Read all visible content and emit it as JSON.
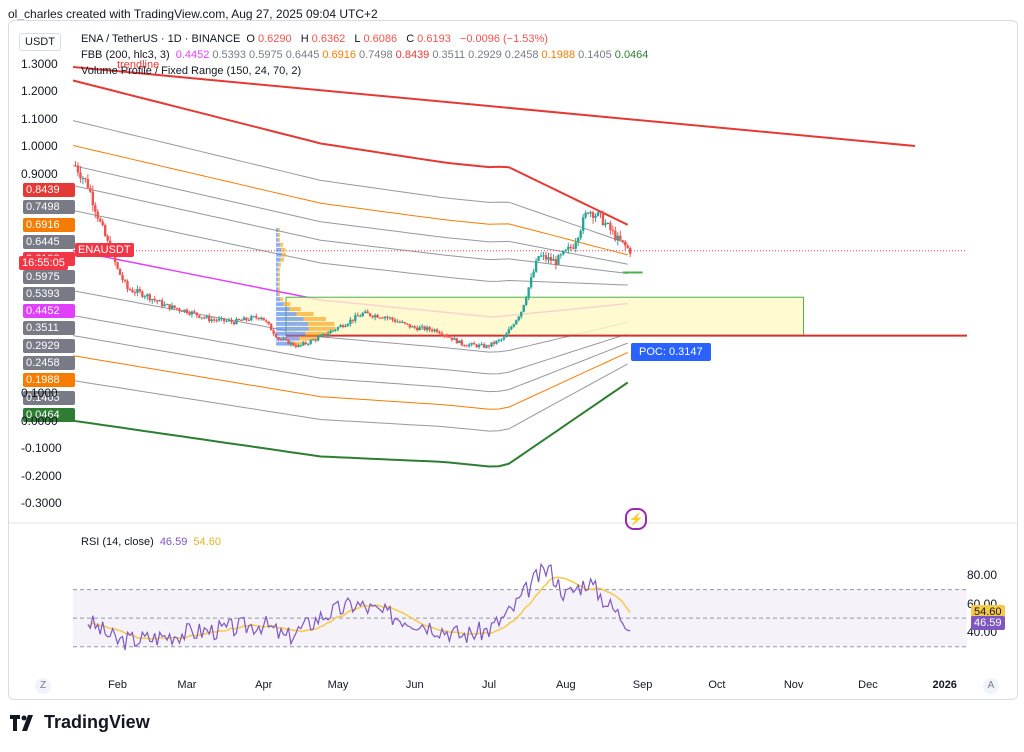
{
  "caption": "ol_charles created with TradingView.com, Aug 27, 2025 09:04 UTC+2",
  "currency": "USDT",
  "legend": {
    "symbol": "ENA / TetherUS · 1D · BINANCE",
    "o_label": "O",
    "o": "0.6290",
    "h_label": "H",
    "h": "0.6362",
    "l_label": "L",
    "l": "0.6086",
    "c_label": "C",
    "c": "0.6193",
    "change": "−0.0096 (−1.53%)",
    "fbb_name": "FBB (200, hlc3, 3)",
    "fbb_values": [
      {
        "v": "0.4452",
        "color": "#e040fb"
      },
      {
        "v": "0.5393",
        "color": "#787b86"
      },
      {
        "v": "0.5975",
        "color": "#787b86"
      },
      {
        "v": "0.6445",
        "color": "#787b86"
      },
      {
        "v": "0.6916",
        "color": "#f57c00"
      },
      {
        "v": "0.7498",
        "color": "#787b86"
      },
      {
        "v": "0.8439",
        "color": "#e53935"
      },
      {
        "v": "0.3511",
        "color": "#787b86"
      },
      {
        "v": "0.2929",
        "color": "#787b86"
      },
      {
        "v": "0.2458",
        "color": "#787b86"
      },
      {
        "v": "0.1988",
        "color": "#f57c00"
      },
      {
        "v": "0.1405",
        "color": "#787b86"
      },
      {
        "v": "0.0464",
        "color": "#2e7d32"
      }
    ],
    "vp_name": "Volume Profile / Fixed Range (150, 24, 70, 2)",
    "trendline_label": "trendline"
  },
  "price_axis": [
    "1.3000",
    "1.2000",
    "1.1000",
    "1.0000",
    "0.9000",
    "0.1000",
    "0.0000",
    "-0.1000",
    "-0.2000",
    "-0.3000"
  ],
  "price_badges": [
    {
      "v": "0.8439",
      "bg": "#e53935",
      "fg": "#ffffff"
    },
    {
      "v": "0.7498",
      "bg": "#787b86",
      "fg": "#ffffff"
    },
    {
      "v": "0.6916",
      "bg": "#f57c00",
      "fg": "#ffffff"
    },
    {
      "v": "0.6445",
      "bg": "#787b86",
      "fg": "#ffffff"
    },
    {
      "v": "0.6193",
      "bg": "#f23645",
      "fg": "#ffffff"
    },
    {
      "v": "0.5975",
      "bg": "#787b86",
      "fg": "#ffffff"
    },
    {
      "v": "0.5393",
      "bg": "#787b86",
      "fg": "#ffffff"
    },
    {
      "v": "0.4452",
      "bg": "#e040fb",
      "fg": "#ffffff"
    },
    {
      "v": "0.3511",
      "bg": "#787b86",
      "fg": "#ffffff"
    },
    {
      "v": "0.2929",
      "bg": "#787b86",
      "fg": "#ffffff"
    },
    {
      "v": "0.2458",
      "bg": "#787b86",
      "fg": "#ffffff"
    },
    {
      "v": "0.1988",
      "bg": "#f57c00",
      "fg": "#ffffff"
    },
    {
      "v": "0.1405",
      "bg": "#787b86",
      "fg": "#ffffff"
    },
    {
      "v": "0.0464",
      "bg": "#2e7d32",
      "fg": "#ffffff"
    }
  ],
  "symbol_tag": "ENAUSDT",
  "countdown": "16:55:05",
  "poc_label": "POC: 0.3147",
  "rsi": {
    "name": "RSI (14, close)",
    "value": "46.59",
    "ma": "54.60",
    "axis": [
      "80.00",
      "60.00",
      "40.00"
    ],
    "badges": [
      {
        "v": "54.60",
        "bg": "#f7c948",
        "fg": "#131722"
      },
      {
        "v": "46.59",
        "bg": "#7e57c2",
        "fg": "#ffffff"
      }
    ]
  },
  "time_axis": [
    "Feb",
    "Mar",
    "Apr",
    "May",
    "Jun",
    "Jul",
    "Aug",
    "Sep",
    "Oct",
    "Nov",
    "Dec",
    "2026"
  ],
  "corner_left": "Z",
  "corner_right": "A",
  "brand": "TradingView",
  "colors": {
    "up": "#26a69a",
    "down": "#ef5350",
    "rsi": "#7e57c2",
    "rsi_ma": "#f7c948",
    "bb_basis": "#e040fb",
    "bb_upper": "#e53935",
    "bb_lower": "#2e7d32",
    "bb_orange": "#f57c00",
    "bb_gray": "#9598a1",
    "trend": "#e53935",
    "support": "#d32f2f",
    "zone": "#fff9c4",
    "zone_border": "#4caf50",
    "vp_up": "#5b8def",
    "vp_down": "#f9a825"
  },
  "chart_data": {
    "type": "candlestick",
    "title": "ENA / TetherUS · 1D · BINANCE",
    "x_range": [
      "2025-01-14",
      "2026-01-10"
    ],
    "y_range": [
      -0.33,
      1.33
    ],
    "close_series": [
      {
        "date": "2025-01-15",
        "c": 0.93
      },
      {
        "date": "2025-01-20",
        "c": 0.86
      },
      {
        "date": "2025-01-25",
        "c": 0.72
      },
      {
        "date": "2025-02-01",
        "c": 0.55
      },
      {
        "date": "2025-02-05",
        "c": 0.48
      },
      {
        "date": "2025-02-12",
        "c": 0.46
      },
      {
        "date": "2025-02-20",
        "c": 0.42
      },
      {
        "date": "2025-03-01",
        "c": 0.4
      },
      {
        "date": "2025-03-10",
        "c": 0.37
      },
      {
        "date": "2025-03-20",
        "c": 0.36
      },
      {
        "date": "2025-03-31",
        "c": 0.38
      },
      {
        "date": "2025-04-07",
        "c": 0.3
      },
      {
        "date": "2025-04-15",
        "c": 0.27
      },
      {
        "date": "2025-04-25",
        "c": 0.31
      },
      {
        "date": "2025-05-05",
        "c": 0.36
      },
      {
        "date": "2025-05-11",
        "c": 0.39
      },
      {
        "date": "2025-05-20",
        "c": 0.38
      },
      {
        "date": "2025-05-31",
        "c": 0.34
      },
      {
        "date": "2025-06-10",
        "c": 0.33
      },
      {
        "date": "2025-06-20",
        "c": 0.28
      },
      {
        "date": "2025-06-30",
        "c": 0.27
      },
      {
        "date": "2025-07-07",
        "c": 0.3
      },
      {
        "date": "2025-07-14",
        "c": 0.4
      },
      {
        "date": "2025-07-21",
        "c": 0.6
      },
      {
        "date": "2025-07-28",
        "c": 0.58
      },
      {
        "date": "2025-08-04",
        "c": 0.64
      },
      {
        "date": "2025-08-10",
        "c": 0.77
      },
      {
        "date": "2025-08-15",
        "c": 0.74
      },
      {
        "date": "2025-08-22",
        "c": 0.66
      },
      {
        "date": "2025-08-27",
        "c": 0.6193
      }
    ],
    "fbb_latest": {
      "basis": 0.4452,
      "upper": [
        0.5393,
        0.5975,
        0.6445,
        0.6916,
        0.7498,
        0.8439
      ],
      "lower": [
        0.3511,
        0.2929,
        0.2458,
        0.1988,
        0.1405,
        0.0464
      ]
    },
    "poc": 0.3147,
    "rsi": {
      "levels": [
        70,
        50,
        30
      ],
      "y_range": [
        20,
        90
      ],
      "values": [
        {
          "date": "2025-01-20",
          "v": 48
        },
        {
          "date": "2025-02-01",
          "v": 34
        },
        {
          "date": "2025-02-15",
          "v": 36
        },
        {
          "date": "2025-03-01",
          "v": 40
        },
        {
          "date": "2025-03-15",
          "v": 42
        },
        {
          "date": "2025-04-01",
          "v": 46
        },
        {
          "date": "2025-04-10",
          "v": 36
        },
        {
          "date": "2025-04-25",
          "v": 52
        },
        {
          "date": "2025-05-08",
          "v": 60
        },
        {
          "date": "2025-05-20",
          "v": 53
        },
        {
          "date": "2025-06-05",
          "v": 46
        },
        {
          "date": "2025-06-20",
          "v": 38
        },
        {
          "date": "2025-07-01",
          "v": 42
        },
        {
          "date": "2025-07-10",
          "v": 55
        },
        {
          "date": "2025-07-20",
          "v": 78
        },
        {
          "date": "2025-07-25",
          "v": 85
        },
        {
          "date": "2025-08-01",
          "v": 66
        },
        {
          "date": "2025-08-10",
          "v": 76
        },
        {
          "date": "2025-08-18",
          "v": 60
        },
        {
          "date": "2025-08-24",
          "v": 50
        },
        {
          "date": "2025-08-27",
          "v": 46.59
        }
      ]
    }
  }
}
